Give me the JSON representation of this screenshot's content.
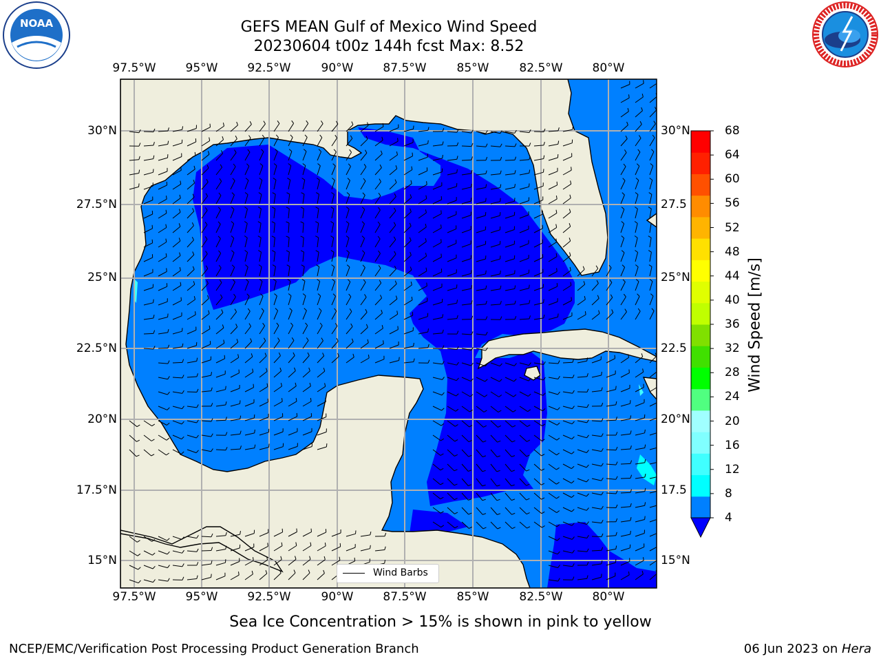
{
  "title": {
    "line1": "GEFS MEAN Gulf of Mexico Wind Speed",
    "line2": "20230604 t00z 144h fcst   Max: 8.52"
  },
  "logos": {
    "noaa": {
      "text": "NOAA",
      "ring_text": "NATIONAL OCEANIC AND ATMOSPHERIC ADMINISTRATION · U.S. DEPARTMENT OF COMMERCE"
    },
    "nws": {
      "ring_text": "NATIONAL WEATHER SERVICE"
    }
  },
  "map": {
    "lon_labels": [
      "97.5°W",
      "95°W",
      "92.5°W",
      "90°W",
      "87.5°W",
      "85°W",
      "82.5°W",
      "80°W"
    ],
    "lat_labels": [
      "30°N",
      "27.5°N",
      "25°N",
      "22.5°N",
      "20°N",
      "17.5°N",
      "15°N"
    ],
    "lat_labels_right": [
      "30°N",
      "27.5",
      "25°N",
      "22.5",
      "20°N",
      "17.5",
      "15°N"
    ],
    "legend_label": "Wind Barbs",
    "colors": {
      "land": "#efeedd",
      "wind_4_8": "#0080ff",
      "wind_0_4": "#0000ff",
      "wind_8_12": "#00ffff",
      "wind_12_16": "#40ffff"
    }
  },
  "colorbar": {
    "label": "Wind Speed [m/s]",
    "ticks": [
      "68",
      "64",
      "60",
      "56",
      "52",
      "48",
      "44",
      "40",
      "36",
      "32",
      "28",
      "24",
      "20",
      "16",
      "12",
      "8",
      "4"
    ],
    "colors": [
      "#0080ff",
      "#00ffff",
      "#40ffff",
      "#80ffff",
      "#a0ffff",
      "#50ff80",
      "#00ff00",
      "#40e000",
      "#80e000",
      "#c0ff00",
      "#e0ff00",
      "#ffff00",
      "#ffe000",
      "#ffb400",
      "#ff8c00",
      "#ff5000",
      "#ff2000",
      "#ff0000"
    ],
    "extend_color": "#0000ff"
  },
  "caption": "Sea Ice Concentration > 15% is shown in pink to yellow",
  "footer": {
    "left": "NCEP/EMC/Verification Post Processing Product Generation Branch",
    "right_date": "06 Jun 2023 on ",
    "right_host": "Hera"
  }
}
